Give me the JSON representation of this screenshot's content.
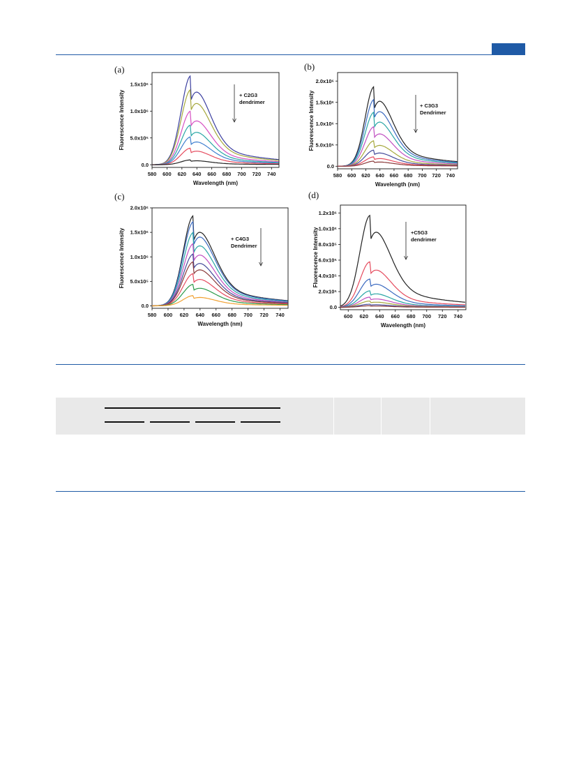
{
  "page": {
    "tab_color": "#1f5aa6",
    "rule_color": "#1f5aa6"
  },
  "chart_data": [
    {
      "panel_label": "(a)",
      "type": "line",
      "xlabel": "Wavelength (nm)",
      "ylabel": "Fluorescence Intensity",
      "xlim": [
        580,
        750
      ],
      "ylim": [
        -0.05,
        1.72
      ],
      "xticks": [
        580,
        600,
        620,
        640,
        660,
        680,
        700,
        720,
        740
      ],
      "yticks": [
        {
          "v": 0,
          "label": "0.0"
        },
        {
          "v": 0.5,
          "label": "5.0x10⁵"
        },
        {
          "v": 1.0,
          "label": "1.0x10⁶"
        },
        {
          "v": 1.5,
          "label": "1.5x10⁶"
        }
      ],
      "annotation": [
        "+ C2G3",
        "dendrimer"
      ],
      "peak": 632,
      "series": [
        {
          "color": "#3b3fa0",
          "peak_value": 1.66
        },
        {
          "color": "#a6a83c",
          "peak_value": 1.4
        },
        {
          "color": "#d64fc1",
          "peak_value": 1.0
        },
        {
          "color": "#2aa6a6",
          "peak_value": 0.74
        },
        {
          "color": "#3f7fd0",
          "peak_value": 0.52
        },
        {
          "color": "#e54b5e",
          "peak_value": 0.31
        },
        {
          "color": "#222222",
          "peak_value": 0.09
        }
      ]
    },
    {
      "panel_label": "(b)",
      "type": "line",
      "xlabel": "Wavelength (nm)",
      "ylabel": "Fluorescence Intensity",
      "xlim": [
        580,
        750
      ],
      "ylim": [
        -0.06,
        2.2
      ],
      "xticks": [
        580,
        600,
        620,
        640,
        660,
        680,
        700,
        720,
        740
      ],
      "yticks": [
        {
          "v": 0,
          "label": "0.0"
        },
        {
          "v": 0.5,
          "label": "5.0x10⁵"
        },
        {
          "v": 1.0,
          "label": "1.0x10⁶"
        },
        {
          "v": 1.5,
          "label": "1.5x10⁶"
        },
        {
          "v": 2.0,
          "label": "2.0x10⁶"
        }
      ],
      "annotation": [
        "+ C3G3",
        "Dendrimer"
      ],
      "peak": 632,
      "series": [
        {
          "color": "#222222",
          "peak_value": 1.87
        },
        {
          "color": "#3b6ac0",
          "peak_value": 1.57
        },
        {
          "color": "#2aa6a6",
          "peak_value": 1.27
        },
        {
          "color": "#c04fc1",
          "peak_value": 0.93
        },
        {
          "color": "#a6a83c",
          "peak_value": 0.6
        },
        {
          "color": "#444a9a",
          "peak_value": 0.38
        },
        {
          "color": "#e54b5e",
          "peak_value": 0.22
        },
        {
          "color": "#8a3a3a",
          "peak_value": 0.12
        }
      ]
    },
    {
      "panel_label": "(c)",
      "type": "line",
      "xlabel": "Wavelength (nm)",
      "ylabel": "Fluorescence Intensity",
      "xlim": [
        580,
        750
      ],
      "ylim": [
        -0.05,
        2.0
      ],
      "xticks": [
        580,
        600,
        620,
        640,
        660,
        680,
        700,
        720,
        740
      ],
      "yticks": [
        {
          "v": 0,
          "label": "0.0"
        },
        {
          "v": 0.5,
          "label": "5.0x10⁵"
        },
        {
          "v": 1.0,
          "label": "1.0x10⁶"
        },
        {
          "v": 1.5,
          "label": "1.5x10⁶"
        },
        {
          "v": 2.0,
          "label": "2.0x10⁶"
        }
      ],
      "annotation": [
        "+ C4G3",
        "Dendrimer"
      ],
      "peak": 632,
      "series": [
        {
          "color": "#222222",
          "peak_value": 1.84
        },
        {
          "color": "#3b6ac0",
          "peak_value": 1.72
        },
        {
          "color": "#2aa6a6",
          "peak_value": 1.5
        },
        {
          "color": "#c04fc1",
          "peak_value": 1.27
        },
        {
          "color": "#444a9a",
          "peak_value": 1.06
        },
        {
          "color": "#8a3a3a",
          "peak_value": 0.9
        },
        {
          "color": "#e54b5e",
          "peak_value": 0.66
        },
        {
          "color": "#2a9a4a",
          "peak_value": 0.44
        },
        {
          "color": "#f0a030",
          "peak_value": 0.21
        }
      ]
    },
    {
      "panel_label": "(d)",
      "type": "line",
      "xlabel": "Wavelength (nm)",
      "ylabel": "Fluorescence Intensity",
      "xlim": [
        590,
        750
      ],
      "ylim": [
        -0.03,
        1.3
      ],
      "xticks": [
        600,
        620,
        640,
        660,
        680,
        700,
        720,
        740
      ],
      "yticks": [
        {
          "v": 0,
          "label": "0.0"
        },
        {
          "v": 0.2,
          "label": "2.0x10⁵"
        },
        {
          "v": 0.4,
          "label": "4.0x10⁵"
        },
        {
          "v": 0.6,
          "label": "6.0x10⁵"
        },
        {
          "v": 0.8,
          "label": "8.0x10⁵"
        },
        {
          "v": 1.0,
          "label": "1.0x10⁶"
        },
        {
          "v": 1.2,
          "label": "1.2x10⁶"
        }
      ],
      "annotation": [
        "+C5G3",
        "dendrimer"
      ],
      "peak": 628,
      "series": [
        {
          "color": "#222222",
          "peak_value": 1.17
        },
        {
          "color": "#e54b5e",
          "peak_value": 0.58
        },
        {
          "color": "#3b6ac0",
          "peak_value": 0.36
        },
        {
          "color": "#2aa6a6",
          "peak_value": 0.21
        },
        {
          "color": "#c04fc1",
          "peak_value": 0.13
        },
        {
          "color": "#a6a83c",
          "peak_value": 0.08
        },
        {
          "color": "#444a9a",
          "peak_value": 0.04
        },
        {
          "color": "#8a3a3a",
          "peak_value": 0.02
        }
      ]
    }
  ]
}
